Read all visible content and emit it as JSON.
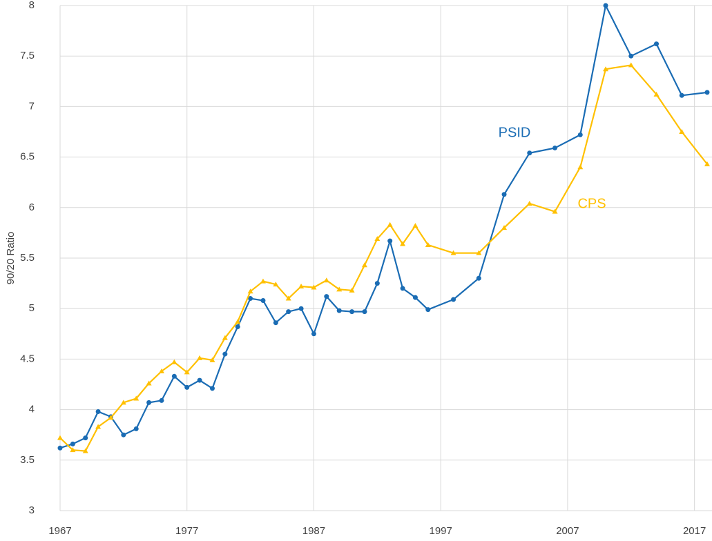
{
  "chart_data": {
    "type": "line",
    "y_label": "90/20 Ratio",
    "x": [
      1967,
      1968,
      1969,
      1970,
      1971,
      1972,
      1973,
      1974,
      1975,
      1976,
      1977,
      1978,
      1979,
      1980,
      1981,
      1982,
      1983,
      1984,
      1985,
      1986,
      1987,
      1988,
      1989,
      1990,
      1991,
      1992,
      1993,
      1994,
      1995,
      1996,
      1998,
      2000,
      2002,
      2004,
      2006,
      2008,
      2010,
      2012,
      2014,
      2016,
      2018
    ],
    "series": [
      {
        "name": "PSID",
        "color": "#1a6cb4",
        "marker": "circle",
        "values": [
          3.62,
          3.66,
          3.72,
          3.98,
          3.93,
          3.75,
          3.81,
          4.07,
          4.09,
          4.33,
          4.22,
          4.29,
          4.21,
          4.55,
          4.82,
          5.1,
          5.08,
          4.86,
          4.97,
          5.0,
          4.75,
          5.12,
          4.98,
          4.97,
          4.97,
          5.25,
          5.67,
          5.2,
          5.11,
          4.99,
          5.09,
          5.3,
          6.13,
          6.54,
          6.59,
          6.72,
          8.0,
          7.5,
          7.62,
          7.11,
          7.14
        ]
      },
      {
        "name": "CPS",
        "color": "#ffc000",
        "marker": "triangle",
        "values": [
          3.72,
          3.6,
          3.59,
          3.83,
          3.92,
          4.07,
          4.11,
          4.26,
          4.38,
          4.47,
          4.37,
          4.51,
          4.49,
          4.71,
          4.87,
          5.17,
          5.27,
          5.24,
          5.1,
          5.22,
          5.21,
          5.28,
          5.19,
          5.18,
          5.43,
          5.69,
          5.83,
          5.64,
          5.82,
          5.63,
          5.55,
          5.55,
          5.8,
          6.04,
          5.96,
          6.4,
          7.37,
          7.41,
          7.12,
          6.75,
          6.43
        ]
      }
    ],
    "xlim": [
      1967,
      2018
    ],
    "xticks": [
      1967,
      1977,
      1987,
      1997,
      2007,
      2017
    ],
    "ylim": [
      3,
      8
    ],
    "yticks": [
      3,
      3.5,
      4,
      4.5,
      5,
      5.5,
      6,
      6.5,
      7,
      7.5,
      8
    ],
    "grid": true
  }
}
